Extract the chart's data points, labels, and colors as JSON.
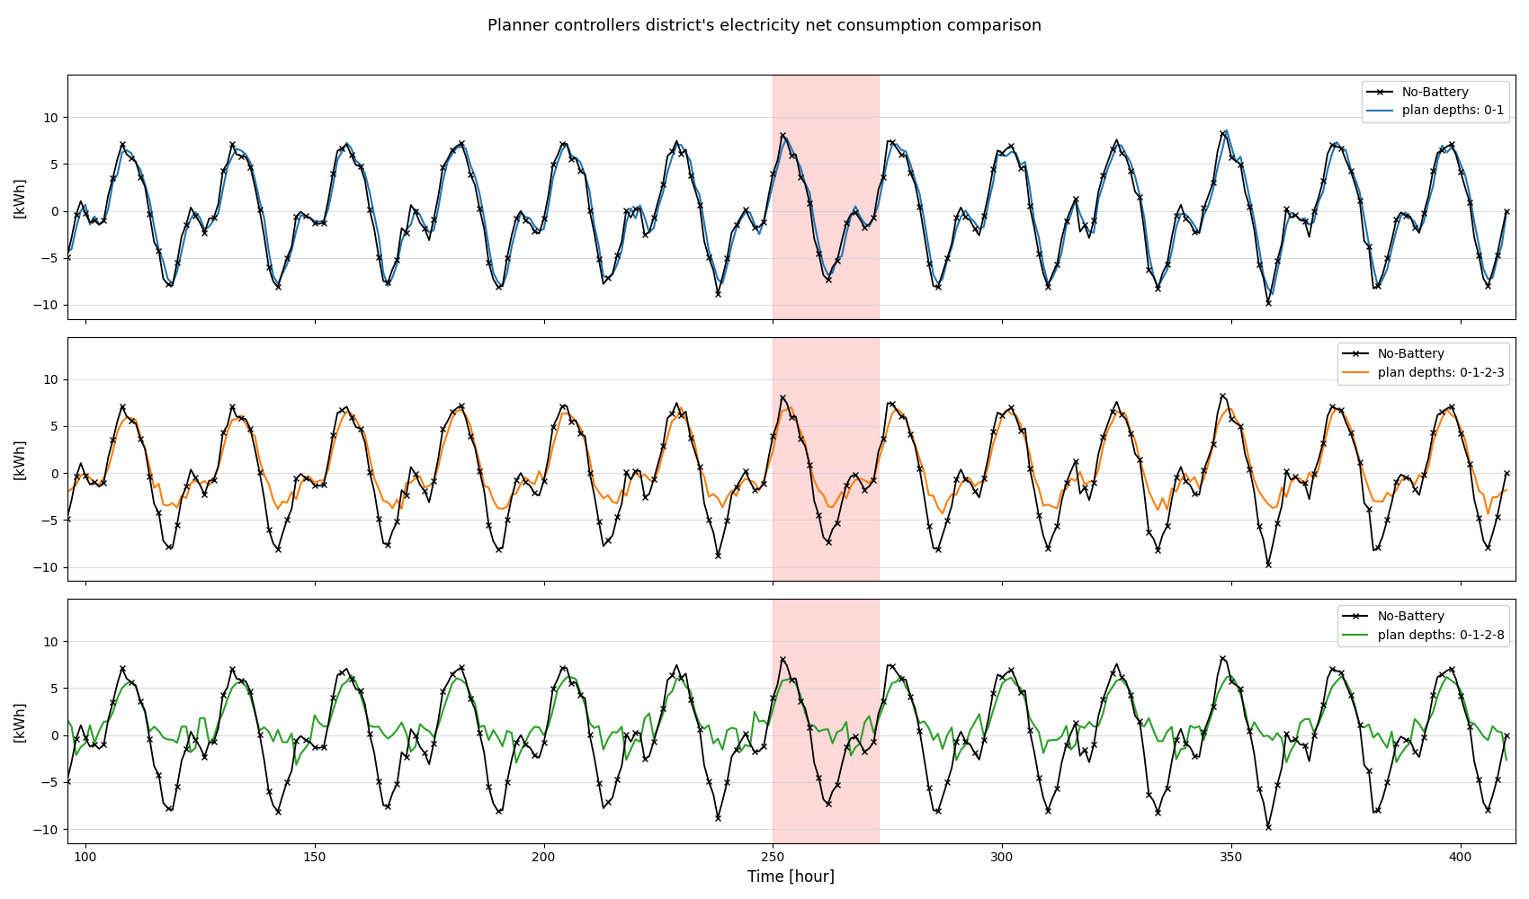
{
  "title": "Planner controllers district's electricity net consumption comparison",
  "xlabel": "Time [hour]",
  "ylabel": "[kWh]",
  "xlim": [
    96,
    412
  ],
  "ylim": [
    -11.5,
    14.5
  ],
  "xticks": [
    100,
    150,
    200,
    250,
    300,
    350,
    400
  ],
  "yticks": [
    -10,
    -5,
    0,
    5,
    10
  ],
  "highlight_xmin": 250,
  "highlight_xmax": 273,
  "highlight_color": "#ffb3b3",
  "highlight_alpha": 0.5,
  "no_battery_color": "#000000",
  "plan1_color": "#1f77b4",
  "plan2_color": "#ff7f0e",
  "plan3_color": "#2ca02c",
  "no_battery_label": "No-Battery",
  "plan1_label": "plan depths: 0-1",
  "plan2_label": "plan depths: 0-1-2-3",
  "plan3_label": "plan depths: 0-1-2-8",
  "line_width": 1.5,
  "marker": "x",
  "markersize": 5,
  "figsize": [
    17.0,
    10.0
  ],
  "dpi": 100
}
